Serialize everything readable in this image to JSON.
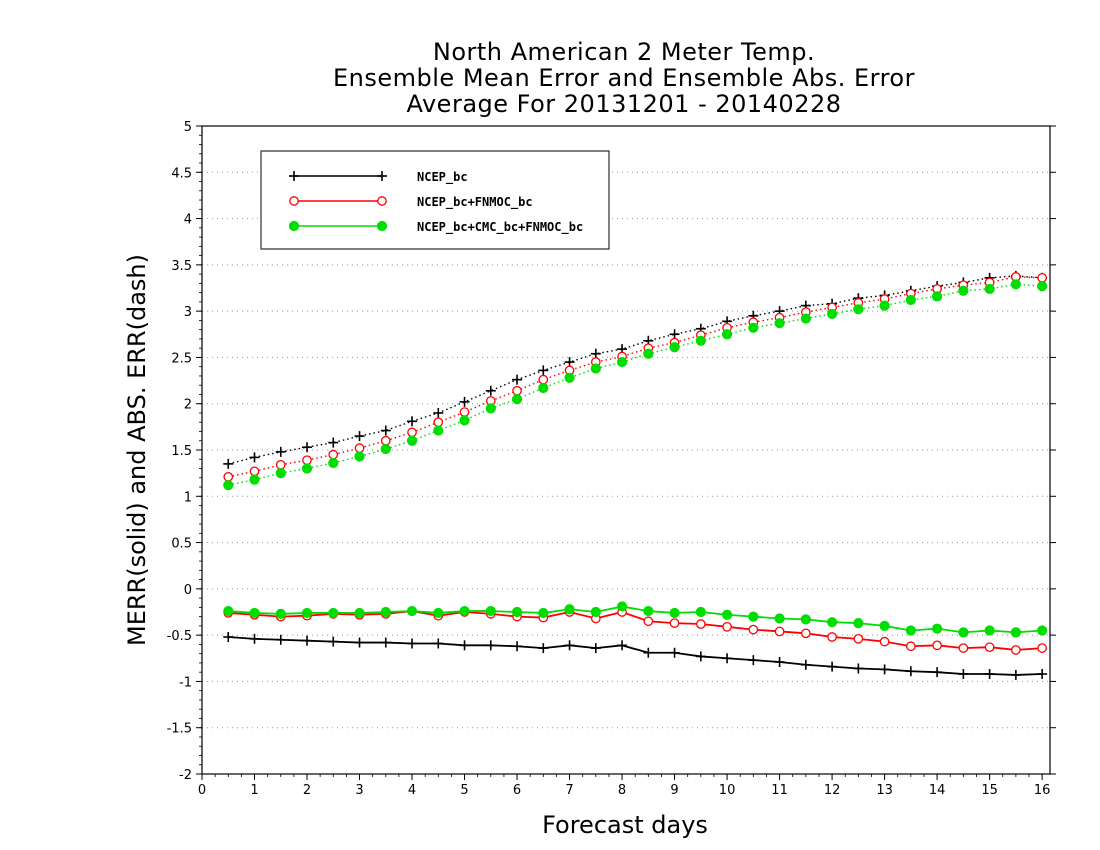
{
  "chart_data": {
    "type": "line",
    "title": [
      "North American 2 Meter Temp.",
      "Ensemble Mean Error and Ensemble Abs. Error",
      "Average For 20131201 - 20140228"
    ],
    "xlabel": "Forecast days",
    "ylabel": "MERR(solid) and ABS. ERR(dash)",
    "xlim": [
      0,
      16.15
    ],
    "ylim": [
      -2,
      5
    ],
    "xticks": [
      "0",
      "1",
      "2",
      "3",
      "4",
      "5",
      "6",
      "7",
      "8",
      "9",
      "10",
      "11",
      "12",
      "13",
      "14",
      "15",
      "16"
    ],
    "yticks": [
      "-2",
      "-1.5",
      "-1",
      "-0.5",
      "0",
      "0.5",
      "1",
      "1.5",
      "2",
      "2.5",
      "3",
      "3.5",
      "4",
      "4.5",
      "5"
    ],
    "ytick_values": [
      -2,
      -1.5,
      -1,
      -0.5,
      0,
      0.5,
      1,
      1.5,
      2,
      2.5,
      3,
      3.5,
      4,
      4.5,
      5
    ],
    "grid": true,
    "legend_position": "top-left",
    "x": [
      0.5,
      1,
      1.5,
      2,
      2.5,
      3,
      3.5,
      4,
      4.5,
      5,
      5.5,
      6,
      6.5,
      7,
      7.5,
      8,
      8.5,
      9,
      9.5,
      10,
      10.5,
      11,
      11.5,
      12,
      12.5,
      13,
      13.5,
      14,
      14.5,
      15,
      15.5,
      16
    ],
    "series": [
      {
        "name": "NCEP_bc",
        "color": "#000000",
        "marker": "plus",
        "abs_err": [
          1.35,
          1.42,
          1.48,
          1.53,
          1.58,
          1.65,
          1.71,
          1.81,
          1.9,
          2.02,
          2.14,
          2.26,
          2.36,
          2.45,
          2.54,
          2.59,
          2.68,
          2.75,
          2.81,
          2.89,
          2.95,
          3.0,
          3.06,
          3.08,
          3.14,
          3.17,
          3.22,
          3.27,
          3.31,
          3.36,
          3.38,
          3.36
        ],
        "mean_err": [
          -0.52,
          -0.54,
          -0.55,
          -0.56,
          -0.57,
          -0.58,
          -0.58,
          -0.59,
          -0.59,
          -0.61,
          -0.61,
          -0.62,
          -0.64,
          -0.61,
          -0.64,
          -0.61,
          -0.69,
          -0.69,
          -0.73,
          -0.75,
          -0.77,
          -0.79,
          -0.82,
          -0.84,
          -0.86,
          -0.87,
          -0.89,
          -0.9,
          -0.92,
          -0.92,
          -0.93,
          -0.92
        ]
      },
      {
        "name": "NCEP_bc+FNMOC_bc",
        "color": "#ff0000",
        "marker": "open-circle",
        "abs_err": [
          1.21,
          1.27,
          1.34,
          1.39,
          1.45,
          1.52,
          1.6,
          1.69,
          1.8,
          1.91,
          2.03,
          2.14,
          2.26,
          2.36,
          2.45,
          2.51,
          2.6,
          2.66,
          2.74,
          2.82,
          2.88,
          2.93,
          2.99,
          3.04,
          3.09,
          3.13,
          3.19,
          3.24,
          3.28,
          3.31,
          3.37,
          3.36
        ],
        "mean_err": [
          -0.26,
          -0.28,
          -0.3,
          -0.29,
          -0.27,
          -0.28,
          -0.27,
          -0.24,
          -0.29,
          -0.25,
          -0.27,
          -0.3,
          -0.31,
          -0.25,
          -0.32,
          -0.25,
          -0.35,
          -0.37,
          -0.38,
          -0.41,
          -0.44,
          -0.46,
          -0.48,
          -0.52,
          -0.54,
          -0.57,
          -0.62,
          -0.61,
          -0.64,
          -0.63,
          -0.66,
          -0.64
        ]
      },
      {
        "name": "NCEP_bc+CMC_bc+FNMOC_bc",
        "color": "#00dd00",
        "marker": "filled-circle",
        "abs_err": [
          1.12,
          1.18,
          1.25,
          1.3,
          1.36,
          1.43,
          1.51,
          1.6,
          1.71,
          1.82,
          1.95,
          2.05,
          2.17,
          2.28,
          2.38,
          2.45,
          2.54,
          2.61,
          2.68,
          2.75,
          2.82,
          2.87,
          2.92,
          2.97,
          3.02,
          3.06,
          3.12,
          3.16,
          3.22,
          3.24,
          3.29,
          3.27
        ],
        "mean_err": [
          -0.24,
          -0.26,
          -0.27,
          -0.26,
          -0.26,
          -0.26,
          -0.25,
          -0.24,
          -0.26,
          -0.24,
          -0.24,
          -0.25,
          -0.26,
          -0.22,
          -0.25,
          -0.19,
          -0.24,
          -0.26,
          -0.25,
          -0.28,
          -0.3,
          -0.32,
          -0.33,
          -0.36,
          -0.37,
          -0.4,
          -0.45,
          -0.43,
          -0.47,
          -0.45,
          -0.47,
          -0.45
        ]
      }
    ]
  }
}
